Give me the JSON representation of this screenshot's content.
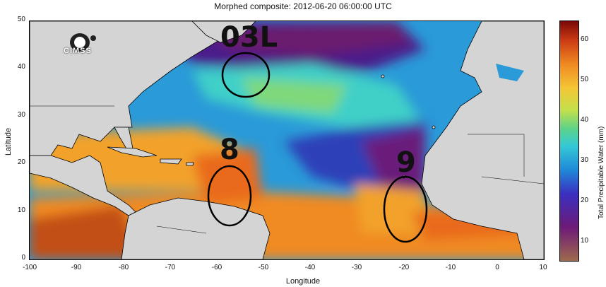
{
  "title": "Morphed composite: 2012-06-20 06:00:00 UTC",
  "xlabel": "Longitude",
  "ylabel": "Latitude",
  "x_ticks": [
    "-100",
    "-90",
    "-80",
    "-70",
    "-60",
    "-50",
    "-40",
    "-30",
    "-20",
    "-10",
    "0",
    "10"
  ],
  "y_ticks": [
    "50",
    "40",
    "30",
    "20",
    "10",
    "0"
  ],
  "colorbar": {
    "label": "Total Precipitable Water (mm)",
    "ticks": [
      "60",
      "50",
      "40",
      "30",
      "20",
      "10"
    ],
    "low_color": "#9e6a4c",
    "high_color": "#7a0808"
  },
  "logo_text": "CIMSS",
  "storm_labels": {
    "a": "03L",
    "b": "8",
    "c": "9"
  }
}
